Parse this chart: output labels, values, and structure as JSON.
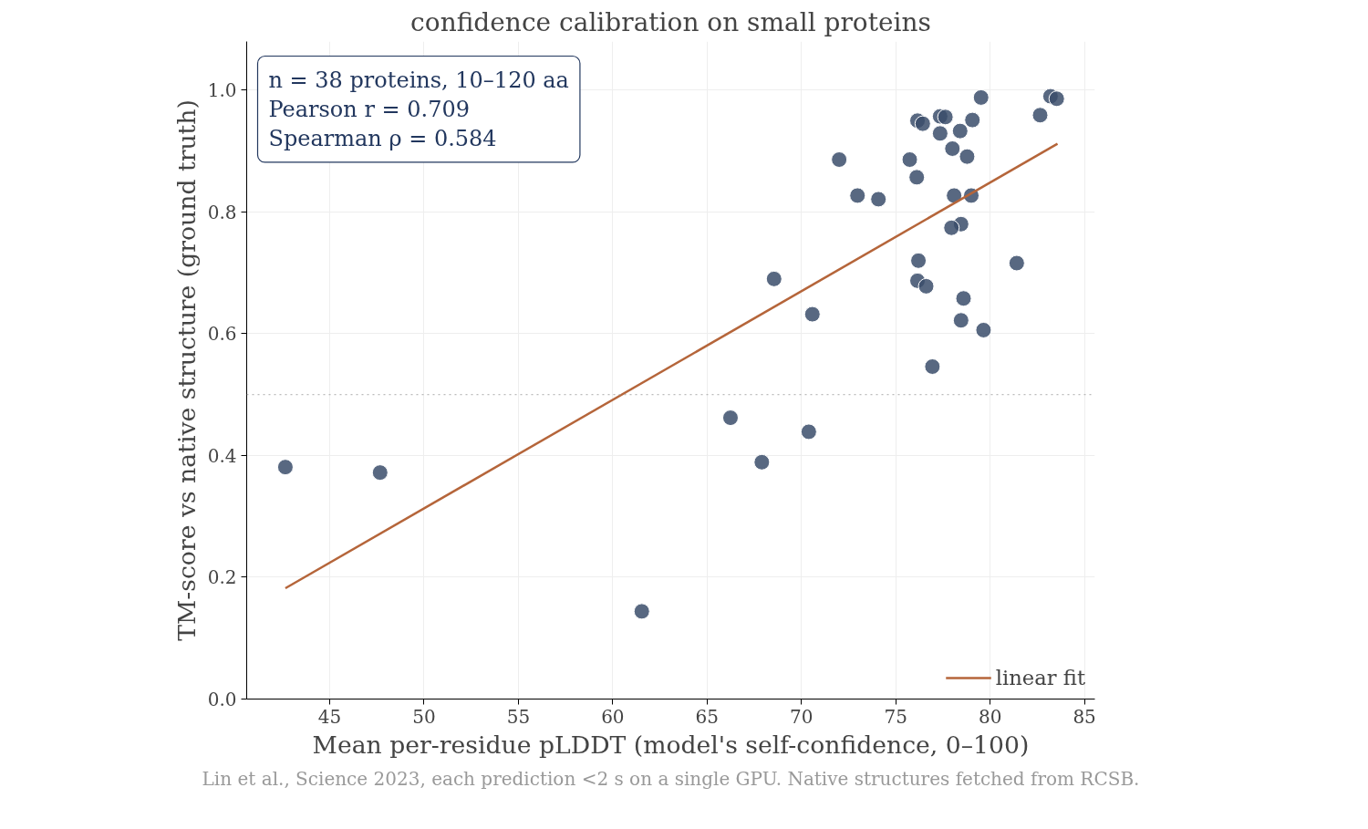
{
  "chart_data": {
    "type": "scatter",
    "title": "confidence calibration on small proteins",
    "xlabel": "Mean per-residue pLDDT (model's self-confidence, 0–100)",
    "ylabel": "TM-score vs native structure (ground truth)",
    "xlim": [
      40.6,
      85.55
    ],
    "xticks": [
      45,
      50,
      55,
      60,
      65,
      70,
      75,
      80,
      85
    ],
    "ylim": [
      0,
      1.08
    ],
    "yticks": [
      {
        "value": 0,
        "label": "0.0"
      },
      {
        "value": 0.2,
        "label": "0.2"
      },
      {
        "value": 0.4,
        "label": "0.4"
      },
      {
        "value": 0.6,
        "label": "0.6"
      },
      {
        "value": 0.8,
        "label": "0.8"
      },
      {
        "value": 1,
        "label": "1.0"
      }
    ],
    "grid": true,
    "legend": "bottom right",
    "ref_lines": [
      {
        "axis": "y",
        "value": 0.5,
        "color": "#aaaaaa",
        "line_style": "dotted"
      }
    ],
    "annotations": [
      "n = 38 proteins, 10–120 aa",
      "Pearson r = 0.709",
      "Spearman ρ = 0.584",
      "Lin et al., Science 2023, each prediction <2 s on a single GPU. Native structures fetched from RCSB."
    ],
    "series": [
      {
        "marker": "circle",
        "color": "#3b4d6b",
        "x": [
          42.65,
          47.67,
          61.54,
          66.24,
          67.9,
          70.39,
          68.55,
          70.58,
          72.0,
          72.97,
          74.08,
          75.74,
          76.11,
          76.15,
          76.43,
          76.2,
          76.15,
          76.61,
          76.94,
          77.35,
          77.63,
          77.35,
          78.0,
          78.41,
          79.06,
          79.52,
          78.78,
          78.09,
          79.0,
          78.46,
          77.95,
          78.59,
          78.46,
          79.65,
          81.41,
          82.65,
          83.2,
          83.53
        ],
        "values": [
          0.381,
          0.372,
          0.144,
          0.462,
          0.389,
          0.439,
          0.69,
          0.632,
          0.886,
          0.827,
          0.821,
          0.886,
          0.857,
          0.95,
          0.945,
          0.72,
          0.687,
          0.678,
          0.546,
          0.957,
          0.956,
          0.929,
          0.904,
          0.933,
          0.951,
          0.988,
          0.891,
          0.827,
          0.827,
          0.78,
          0.774,
          0.658,
          0.622,
          0.606,
          0.716,
          0.959,
          0.99,
          0.986
        ]
      },
      {
        "type": "line",
        "name": "linear fit",
        "color": "#b5653a",
        "x": [
          42.65,
          83.57
        ],
        "values": [
          0.182,
          0.912
        ]
      }
    ]
  }
}
